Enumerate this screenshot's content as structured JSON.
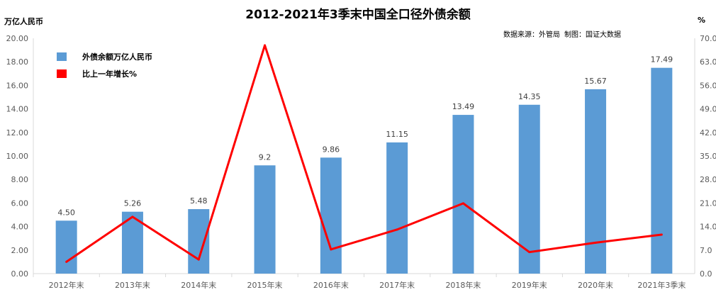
{
  "chart_data": {
    "type": "bar",
    "title": "2012-2021年3季末中国全口径外债余额",
    "source": "数据来源：外管局 制图：国证大数据",
    "left_axis_unit": "万亿人民币",
    "right_axis_unit": "%",
    "categories": [
      "2012年末",
      "2013年末",
      "2014年末",
      "2015年末",
      "2016年末",
      "2017年末",
      "2018年末",
      "2019年末",
      "2020年末",
      "2021年3季末"
    ],
    "series": [
      {
        "name": "外债余额万亿人民币",
        "type": "bar",
        "axis": "left",
        "color": "#5b9bd5",
        "values": [
          4.5,
          5.26,
          5.48,
          9.2,
          9.86,
          11.15,
          13.49,
          14.35,
          15.67,
          17.49
        ],
        "labels": [
          "4.50",
          "5.26",
          "5.48",
          "9.2",
          "9.86",
          "11.15",
          "13.49",
          "14.35",
          "15.67",
          "17.49"
        ]
      },
      {
        "name": "比上一年增长%",
        "type": "line",
        "axis": "right",
        "color": "#ff0000",
        "values": [
          3.5,
          16.9,
          4.2,
          67.9,
          7.2,
          13.1,
          20.9,
          6.4,
          9.2,
          11.6
        ]
      }
    ],
    "left_ylim": [
      0,
      20
    ],
    "left_ticks": [
      "0.00",
      "2.00",
      "4.00",
      "6.00",
      "8.00",
      "10.00",
      "12.00",
      "14.00",
      "16.00",
      "18.00",
      "20.00"
    ],
    "right_ylim": [
      0,
      70
    ],
    "right_ticks": [
      "0.0",
      "7.0",
      "14.0",
      "21.0",
      "28.0",
      "35.0",
      "42.0",
      "49.0",
      "56.0",
      "63.0",
      "70.0"
    ],
    "grid": false,
    "legend_position": "top-left"
  }
}
